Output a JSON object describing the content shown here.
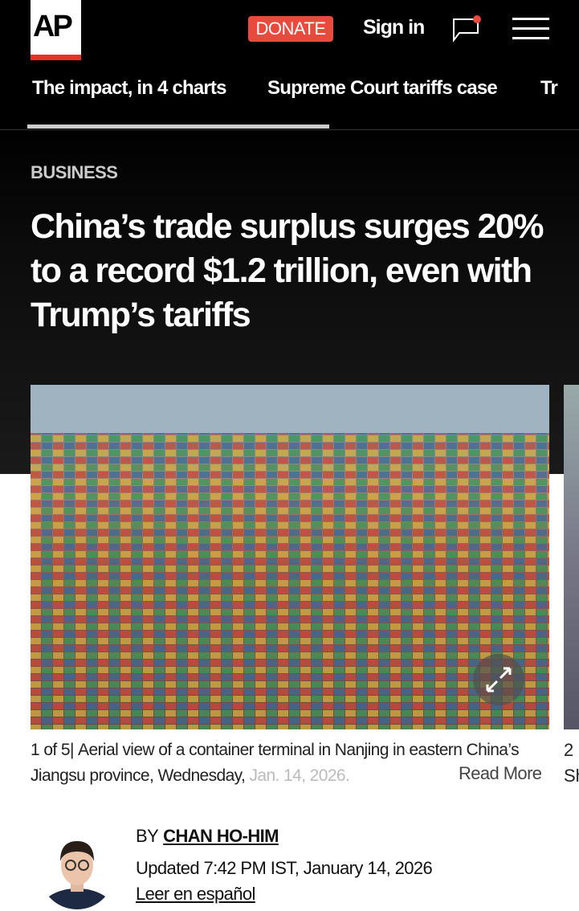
{
  "header": {
    "logo": "AP",
    "donate": "DONATE",
    "signin": "Sign in",
    "accent": "#e84a3d"
  },
  "nav": {
    "items": [
      "The impact, in 4 charts",
      "Supreme Court tariffs case",
      "Trump tariffs"
    ],
    "visible_third": "Tr"
  },
  "article": {
    "section": "BUSINESS",
    "headline": "China’s trade surplus surges 20% to a record $1.2 trillion, even with Trump’s tariffs",
    "gallery": {
      "counter": "1 of 5",
      "caption_main": "Aerial view of a container terminal in Nanjing in eastern China’s Jiangsu province, Wednesday,",
      "caption_faded": " Jan. 14, 2026.",
      "read_more": "Read More",
      "next_counter": "2",
      "next_caption_start": "Sh"
    },
    "byline": {
      "by": "BY",
      "author": "CHAN HO-HIM",
      "updated": "Updated 7:42 PM IST, January 14, 2026",
      "spanish": "Leer en español"
    }
  }
}
